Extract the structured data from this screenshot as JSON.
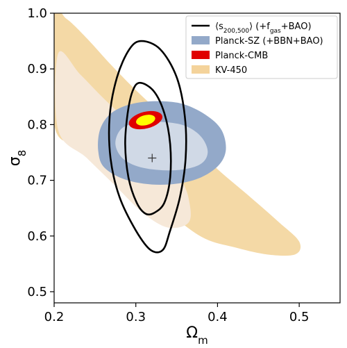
{
  "chart_data": {
    "type": "contour",
    "xlabel": "Ω",
    "xlabel_sub": "m",
    "ylabel": "σ",
    "ylabel_sub": "8",
    "xlim": [
      0.2,
      0.55
    ],
    "ylim": [
      0.48,
      1.0
    ],
    "xticks": [
      0.2,
      0.3,
      0.4,
      0.5
    ],
    "xtick_labels": [
      "0.2",
      "0.3",
      "0.4",
      "0.5"
    ],
    "yticks": [
      0.5,
      0.6,
      0.7,
      0.8,
      0.9,
      1.0
    ],
    "ytick_labels": [
      "0.5",
      "0.6",
      "0.7",
      "0.8",
      "0.9",
      "1.0"
    ],
    "legend_position": "top-right",
    "legend": [
      {
        "label_parts": [
          "⟨s",
          "200,500",
          "⟩ (+f",
          "gas",
          "+BAO)"
        ],
        "style": "line",
        "color": "#000000"
      },
      {
        "label": "Planck-SZ (+BBN+BAO)",
        "style": "patch",
        "color": "#93a9c9"
      },
      {
        "label": "Planck-CMB",
        "style": "patch",
        "color": "#e00000"
      },
      {
        "label": "KV-450",
        "style": "patch",
        "color": "#f4d39b"
      }
    ],
    "best_fit": {
      "x": 0.32,
      "y": 0.74
    },
    "series": [
      {
        "name": "KV-450",
        "kind": "filled-contour",
        "colors": {
          "outer": "#f4d9a6",
          "inner": "#f6e8d8"
        },
        "outer": [
          [
            0.2,
            0.995
          ],
          [
            0.215,
            0.99
          ],
          [
            0.24,
            0.955
          ],
          [
            0.268,
            0.91
          ],
          [
            0.3,
            0.862
          ],
          [
            0.332,
            0.818
          ],
          [
            0.365,
            0.77
          ],
          [
            0.4,
            0.72
          ],
          [
            0.44,
            0.67
          ],
          [
            0.475,
            0.625
          ],
          [
            0.5,
            0.59
          ],
          [
            0.495,
            0.567
          ],
          [
            0.46,
            0.567
          ],
          [
            0.42,
            0.58
          ],
          [
            0.385,
            0.595
          ],
          [
            0.35,
            0.63
          ],
          [
            0.31,
            0.678
          ],
          [
            0.27,
            0.718
          ],
          [
            0.23,
            0.76
          ],
          [
            0.2,
            0.8
          ]
        ],
        "inner": [
          [
            0.205,
            0.928
          ],
          [
            0.232,
            0.89
          ],
          [
            0.262,
            0.845
          ],
          [
            0.295,
            0.8
          ],
          [
            0.33,
            0.752
          ],
          [
            0.355,
            0.702
          ],
          [
            0.365,
            0.665
          ],
          [
            0.365,
            0.625
          ],
          [
            0.34,
            0.615
          ],
          [
            0.31,
            0.64
          ],
          [
            0.275,
            0.69
          ],
          [
            0.24,
            0.74
          ],
          [
            0.205,
            0.79
          ]
        ]
      },
      {
        "name": "Planck-SZ (+BBN+BAO)",
        "kind": "filled-contour",
        "colors": {
          "outer": "#93a9c9",
          "inner": "#d0d9e6"
        },
        "outer": [
          [
            0.268,
            0.818
          ],
          [
            0.29,
            0.835
          ],
          [
            0.32,
            0.842
          ],
          [
            0.355,
            0.838
          ],
          [
            0.385,
            0.818
          ],
          [
            0.405,
            0.79
          ],
          [
            0.41,
            0.752
          ],
          [
            0.398,
            0.722
          ],
          [
            0.37,
            0.7
          ],
          [
            0.33,
            0.692
          ],
          [
            0.29,
            0.7
          ],
          [
            0.262,
            0.722
          ],
          [
            0.254,
            0.752
          ],
          [
            0.256,
            0.79
          ]
        ],
        "inner": [
          [
            0.282,
            0.792
          ],
          [
            0.3,
            0.802
          ],
          [
            0.33,
            0.805
          ],
          [
            0.36,
            0.798
          ],
          [
            0.38,
            0.778
          ],
          [
            0.388,
            0.75
          ],
          [
            0.378,
            0.728
          ],
          [
            0.348,
            0.718
          ],
          [
            0.31,
            0.722
          ],
          [
            0.285,
            0.738
          ],
          [
            0.275,
            0.765
          ]
        ]
      },
      {
        "name": "Planck-CMB",
        "kind": "filled-ellipse",
        "colors": {
          "outer": "#e00000",
          "inner": "#ffff00"
        },
        "center": [
          0.312,
          0.808
        ],
        "outer_radii": [
          0.021,
          0.015
        ],
        "inner_radii": [
          0.012,
          0.009
        ],
        "rotation_deg": -14
      },
      {
        "name": "⟨s200,500⟩ (+fgas+BAO)",
        "kind": "line-contour",
        "colors": {
          "line": "#000000"
        },
        "outer": [
          [
            0.307,
            0.95
          ],
          [
            0.33,
            0.935
          ],
          [
            0.35,
            0.885
          ],
          [
            0.36,
            0.815
          ],
          [
            0.361,
            0.74
          ],
          [
            0.354,
            0.67
          ],
          [
            0.342,
            0.61
          ],
          [
            0.333,
            0.575
          ],
          [
            0.318,
            0.575
          ],
          [
            0.3,
            0.61
          ],
          [
            0.28,
            0.67
          ],
          [
            0.269,
            0.74
          ],
          [
            0.268,
            0.815
          ],
          [
            0.277,
            0.885
          ],
          [
            0.292,
            0.935
          ]
        ],
        "inner": [
          [
            0.305,
            0.875
          ],
          [
            0.322,
            0.86
          ],
          [
            0.335,
            0.82
          ],
          [
            0.342,
            0.765
          ],
          [
            0.342,
            0.705
          ],
          [
            0.335,
            0.66
          ],
          [
            0.323,
            0.642
          ],
          [
            0.312,
            0.64
          ],
          [
            0.301,
            0.66
          ],
          [
            0.291,
            0.705
          ],
          [
            0.287,
            0.765
          ],
          [
            0.29,
            0.82
          ],
          [
            0.296,
            0.86
          ]
        ]
      }
    ]
  }
}
